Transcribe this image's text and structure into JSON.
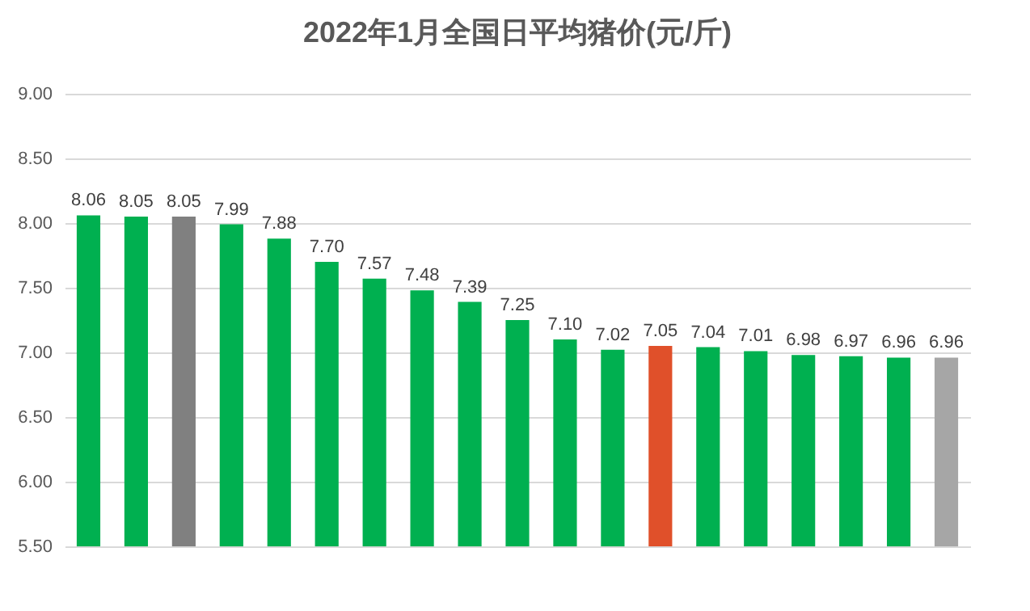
{
  "chart_data": {
    "type": "bar",
    "title": "2022年1月全国日平均猪价(元/斤)",
    "categories": [
      null,
      null,
      null,
      null,
      null,
      null,
      null,
      null,
      null,
      null,
      null,
      null,
      null,
      null,
      null,
      null,
      null,
      null,
      null
    ],
    "values": [
      8.06,
      8.05,
      8.05,
      7.99,
      7.88,
      7.7,
      7.57,
      7.48,
      7.39,
      7.25,
      7.1,
      7.02,
      7.05,
      7.04,
      7.01,
      6.98,
      6.97,
      6.96,
      6.96
    ],
    "value_labels": [
      "8.06",
      "8.05",
      "8.05",
      "7.99",
      "7.88",
      "7.70",
      "7.57",
      "7.48",
      "7.39",
      "7.25",
      "7.10",
      "7.02",
      "7.05",
      "7.04",
      "7.01",
      "6.98",
      "6.97",
      "6.96",
      "6.96"
    ],
    "colors": [
      "#00b050",
      "#00b050",
      "#808080",
      "#00b050",
      "#00b050",
      "#00b050",
      "#00b050",
      "#00b050",
      "#00b050",
      "#00b050",
      "#00b050",
      "#00b050",
      "#e0502a",
      "#00b050",
      "#00b050",
      "#00b050",
      "#00b050",
      "#00b050",
      "#a6a6a6"
    ],
    "ylim": [
      5.5,
      9.0
    ],
    "yticks": [
      {
        "value": 5.5,
        "label": "5.50"
      },
      {
        "value": 6.0,
        "label": "6.00"
      },
      {
        "value": 6.5,
        "label": "6.50"
      },
      {
        "value": 7.0,
        "label": "7.00"
      },
      {
        "value": 7.5,
        "label": "7.50"
      },
      {
        "value": 8.0,
        "label": "8.00"
      },
      {
        "value": 8.5,
        "label": "8.50"
      },
      {
        "value": 9.0,
        "label": "9.00"
      }
    ],
    "grid": "y",
    "tick_labels": "y"
  }
}
